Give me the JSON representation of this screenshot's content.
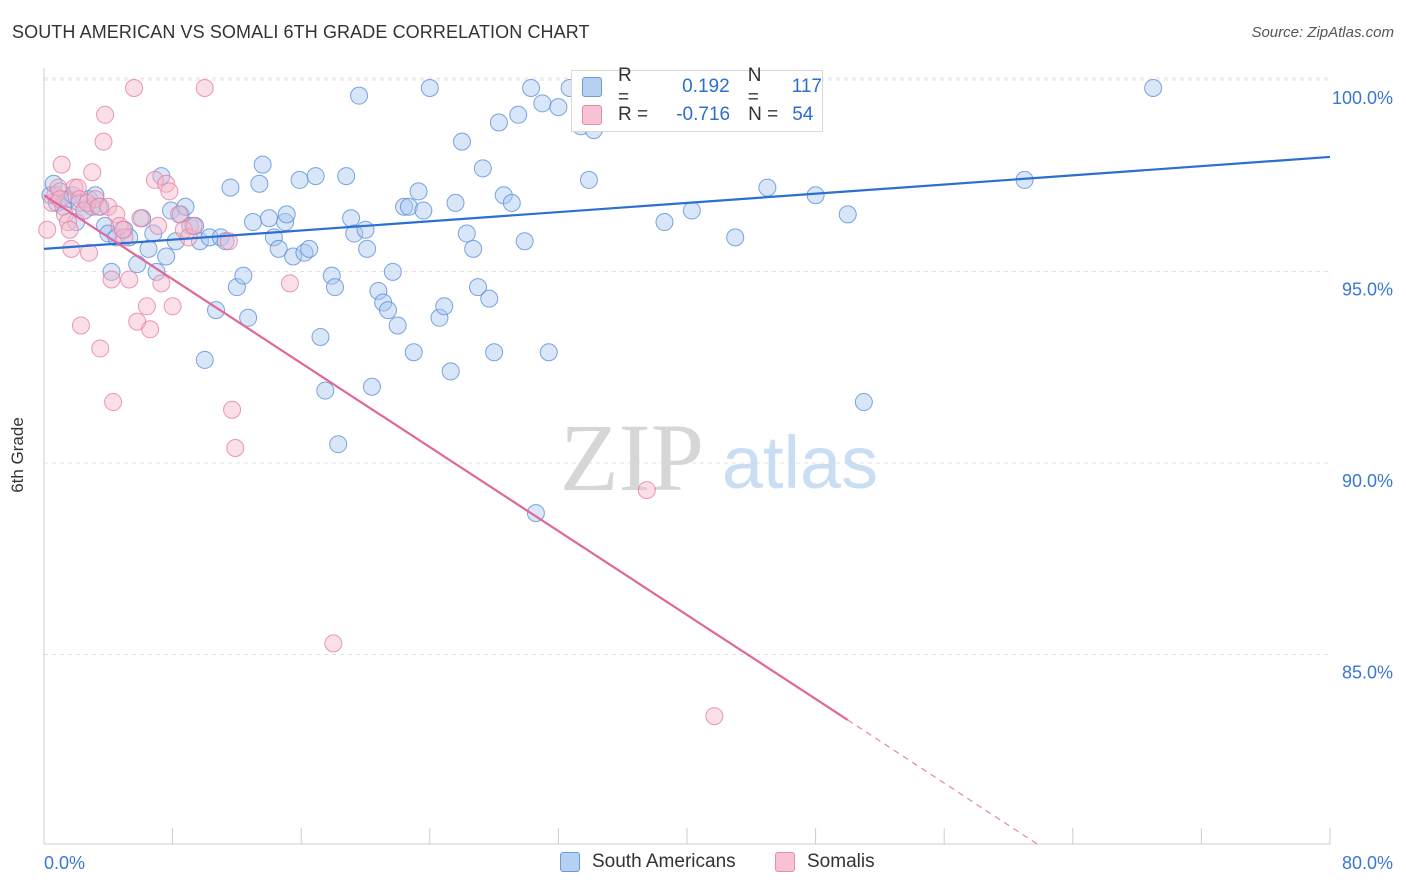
{
  "header": {
    "title": "SOUTH AMERICAN VS SOMALI 6TH GRADE CORRELATION CHART",
    "source": "Source: ZipAtlas.com"
  },
  "watermark": {
    "zip": "ZIP",
    "atlas": "atlas"
  },
  "legend": {
    "rows": [
      {
        "r_label": "R =",
        "r_value": "0.192",
        "n_label": "N =",
        "n_value": "117"
      },
      {
        "r_label": "R =",
        "r_value": "-0.716",
        "n_label": "N =",
        "n_value": "54"
      }
    ]
  },
  "bottom_legend": {
    "items": [
      "South Americans",
      "Somalis"
    ]
  },
  "colors": {
    "blue_fill": "#a8c8f0",
    "blue_stroke": "#5b8fd8",
    "blue_line": "#2b6fd0",
    "pink_fill": "#f5b8cb",
    "pink_stroke": "#e67fa1",
    "pink_line": "#e0679a",
    "tick_text": "#3a78d0",
    "grid": "#e2e2e2"
  },
  "chart_data": {
    "type": "scatter",
    "title": "SOUTH AMERICAN VS SOMALI 6TH GRADE CORRELATION CHART",
    "xlabel": "",
    "ylabel": "6th Grade",
    "xlim": [
      0,
      80
    ],
    "ylim": [
      80.0,
      101.0
    ],
    "x_tick_labels": [
      "0.0%",
      "80.0%"
    ],
    "y_ticks": [
      85,
      90,
      95,
      100
    ],
    "y_tick_labels": [
      "85.0%",
      "90.0%",
      "95.0%",
      "100.0%"
    ],
    "grid": true,
    "legend_position": "top-center",
    "series": [
      {
        "name": "South Americans",
        "r": 0.192,
        "n": 117,
        "trend": {
          "x0": 0,
          "y0": 95.8,
          "x1": 80,
          "y1": 98.2
        },
        "points": [
          [
            0.4,
            97.2
          ],
          [
            0.6,
            97.5
          ],
          [
            0.8,
            97.0
          ],
          [
            1.0,
            97.3
          ],
          [
            1.2,
            96.9
          ],
          [
            1.5,
            97.1
          ],
          [
            1.8,
            97.2
          ],
          [
            2.0,
            96.5
          ],
          [
            2.2,
            97.0
          ],
          [
            2.5,
            96.8
          ],
          [
            2.8,
            97.1
          ],
          [
            3.0,
            96.9
          ],
          [
            3.2,
            97.2
          ],
          [
            3.5,
            96.9
          ],
          [
            3.8,
            96.4
          ],
          [
            4.0,
            96.2
          ],
          [
            4.2,
            95.2
          ],
          [
            4.5,
            96.1
          ],
          [
            5.0,
            96.3
          ],
          [
            5.3,
            96.1
          ],
          [
            5.8,
            95.4
          ],
          [
            6.1,
            96.6
          ],
          [
            6.5,
            95.8
          ],
          [
            6.8,
            96.2
          ],
          [
            7.0,
            95.2
          ],
          [
            7.3,
            97.7
          ],
          [
            7.6,
            95.6
          ],
          [
            7.9,
            96.8
          ],
          [
            8.2,
            96.0
          ],
          [
            8.5,
            96.7
          ],
          [
            8.8,
            96.9
          ],
          [
            9.1,
            96.4
          ],
          [
            9.4,
            96.4
          ],
          [
            9.7,
            96.0
          ],
          [
            10.0,
            92.9
          ],
          [
            10.3,
            96.1
          ],
          [
            10.7,
            94.2
          ],
          [
            11.0,
            96.1
          ],
          [
            11.3,
            96.0
          ],
          [
            11.6,
            97.4
          ],
          [
            12.0,
            94.8
          ],
          [
            12.4,
            95.1
          ],
          [
            12.7,
            94.0
          ],
          [
            13.0,
            96.5
          ],
          [
            13.4,
            97.5
          ],
          [
            13.6,
            98.0
          ],
          [
            14.0,
            96.6
          ],
          [
            14.3,
            96.1
          ],
          [
            14.6,
            95.8
          ],
          [
            15.0,
            96.5
          ],
          [
            15.1,
            96.7
          ],
          [
            15.5,
            95.6
          ],
          [
            15.9,
            97.6
          ],
          [
            16.2,
            95.7
          ],
          [
            16.5,
            95.8
          ],
          [
            16.9,
            97.7
          ],
          [
            17.2,
            93.5
          ],
          [
            17.5,
            92.1
          ],
          [
            17.9,
            95.1
          ],
          [
            18.1,
            94.8
          ],
          [
            18.3,
            90.7
          ],
          [
            18.8,
            97.7
          ],
          [
            19.1,
            96.6
          ],
          [
            19.3,
            96.2
          ],
          [
            19.6,
            99.8
          ],
          [
            20.0,
            96.3
          ],
          [
            20.1,
            95.8
          ],
          [
            20.4,
            92.2
          ],
          [
            20.8,
            94.7
          ],
          [
            21.1,
            94.4
          ],
          [
            21.4,
            94.2
          ],
          [
            21.7,
            95.2
          ],
          [
            22.0,
            93.8
          ],
          [
            22.4,
            96.9
          ],
          [
            22.7,
            96.9
          ],
          [
            23.0,
            93.1
          ],
          [
            23.3,
            97.3
          ],
          [
            23.6,
            96.8
          ],
          [
            24.0,
            100.0
          ],
          [
            24.6,
            94.0
          ],
          [
            24.9,
            94.3
          ],
          [
            25.3,
            92.6
          ],
          [
            25.6,
            97.0
          ],
          [
            26.0,
            98.6
          ],
          [
            26.3,
            96.2
          ],
          [
            26.7,
            95.8
          ],
          [
            27.0,
            94.8
          ],
          [
            27.3,
            97.9
          ],
          [
            27.7,
            94.5
          ],
          [
            28.0,
            93.1
          ],
          [
            28.3,
            99.1
          ],
          [
            28.6,
            97.2
          ],
          [
            29.1,
            97.0
          ],
          [
            29.5,
            99.3
          ],
          [
            29.9,
            96.0
          ],
          [
            30.3,
            100.0
          ],
          [
            30.6,
            88.9
          ],
          [
            31.0,
            99.6
          ],
          [
            31.4,
            93.1
          ],
          [
            32.0,
            99.5
          ],
          [
            32.7,
            100.0
          ],
          [
            33.4,
            99.0
          ],
          [
            33.9,
            97.6
          ],
          [
            34.2,
            98.9
          ],
          [
            35.0,
            100.0
          ],
          [
            37.0,
            99.3
          ],
          [
            38.2,
            99.6
          ],
          [
            38.6,
            96.5
          ],
          [
            40.3,
            96.8
          ],
          [
            42.0,
            99.4
          ],
          [
            43.0,
            96.1
          ],
          [
            45.0,
            97.4
          ],
          [
            48.0,
            97.2
          ],
          [
            50.0,
            96.7
          ],
          [
            51.0,
            91.8
          ],
          [
            61.0,
            97.6
          ],
          [
            69.0,
            100.0
          ]
        ]
      },
      {
        "name": "Somalis",
        "r": -0.716,
        "n": 54,
        "trend": {
          "x0": 0,
          "y0": 97.2,
          "x1": 50,
          "y1": 83.5,
          "dash_x1": 62,
          "dash_y1": 80.2
        },
        "points": [
          [
            0.2,
            96.3
          ],
          [
            0.5,
            97.0
          ],
          [
            0.7,
            97.2
          ],
          [
            0.9,
            97.4
          ],
          [
            1.1,
            98.0
          ],
          [
            1.3,
            96.7
          ],
          [
            1.5,
            96.5
          ],
          [
            1.6,
            96.3
          ],
          [
            1.7,
            95.8
          ],
          [
            1.9,
            97.4
          ],
          [
            2.1,
            97.4
          ],
          [
            2.2,
            97.1
          ],
          [
            2.3,
            93.8
          ],
          [
            2.5,
            96.8
          ],
          [
            2.7,
            97.0
          ],
          [
            2.8,
            95.7
          ],
          [
            3.0,
            97.8
          ],
          [
            3.2,
            97.1
          ],
          [
            3.4,
            96.9
          ],
          [
            3.5,
            93.2
          ],
          [
            3.7,
            98.6
          ],
          [
            3.8,
            99.3
          ],
          [
            4.0,
            96.9
          ],
          [
            4.2,
            95.0
          ],
          [
            4.3,
            91.8
          ],
          [
            4.5,
            96.7
          ],
          [
            4.7,
            96.4
          ],
          [
            5.0,
            96.1
          ],
          [
            5.3,
            95.0
          ],
          [
            5.6,
            100.0
          ],
          [
            5.8,
            93.9
          ],
          [
            6.0,
            96.6
          ],
          [
            6.4,
            94.3
          ],
          [
            6.6,
            93.7
          ],
          [
            6.9,
            97.6
          ],
          [
            7.1,
            96.4
          ],
          [
            7.3,
            94.9
          ],
          [
            7.6,
            97.5
          ],
          [
            8.0,
            94.3
          ],
          [
            8.4,
            96.7
          ],
          [
            8.7,
            96.3
          ],
          [
            9.0,
            96.1
          ],
          [
            9.3,
            96.4
          ],
          [
            10.0,
            100.0
          ],
          [
            11.5,
            96.0
          ],
          [
            11.7,
            91.6
          ],
          [
            11.9,
            90.6
          ],
          [
            15.3,
            94.9
          ],
          [
            18.0,
            85.5
          ],
          [
            37.5,
            89.5
          ],
          [
            41.7,
            83.6
          ],
          [
            7.8,
            97.3
          ],
          [
            4.9,
            96.3
          ],
          [
            1.0,
            97.1
          ]
        ]
      }
    ]
  }
}
